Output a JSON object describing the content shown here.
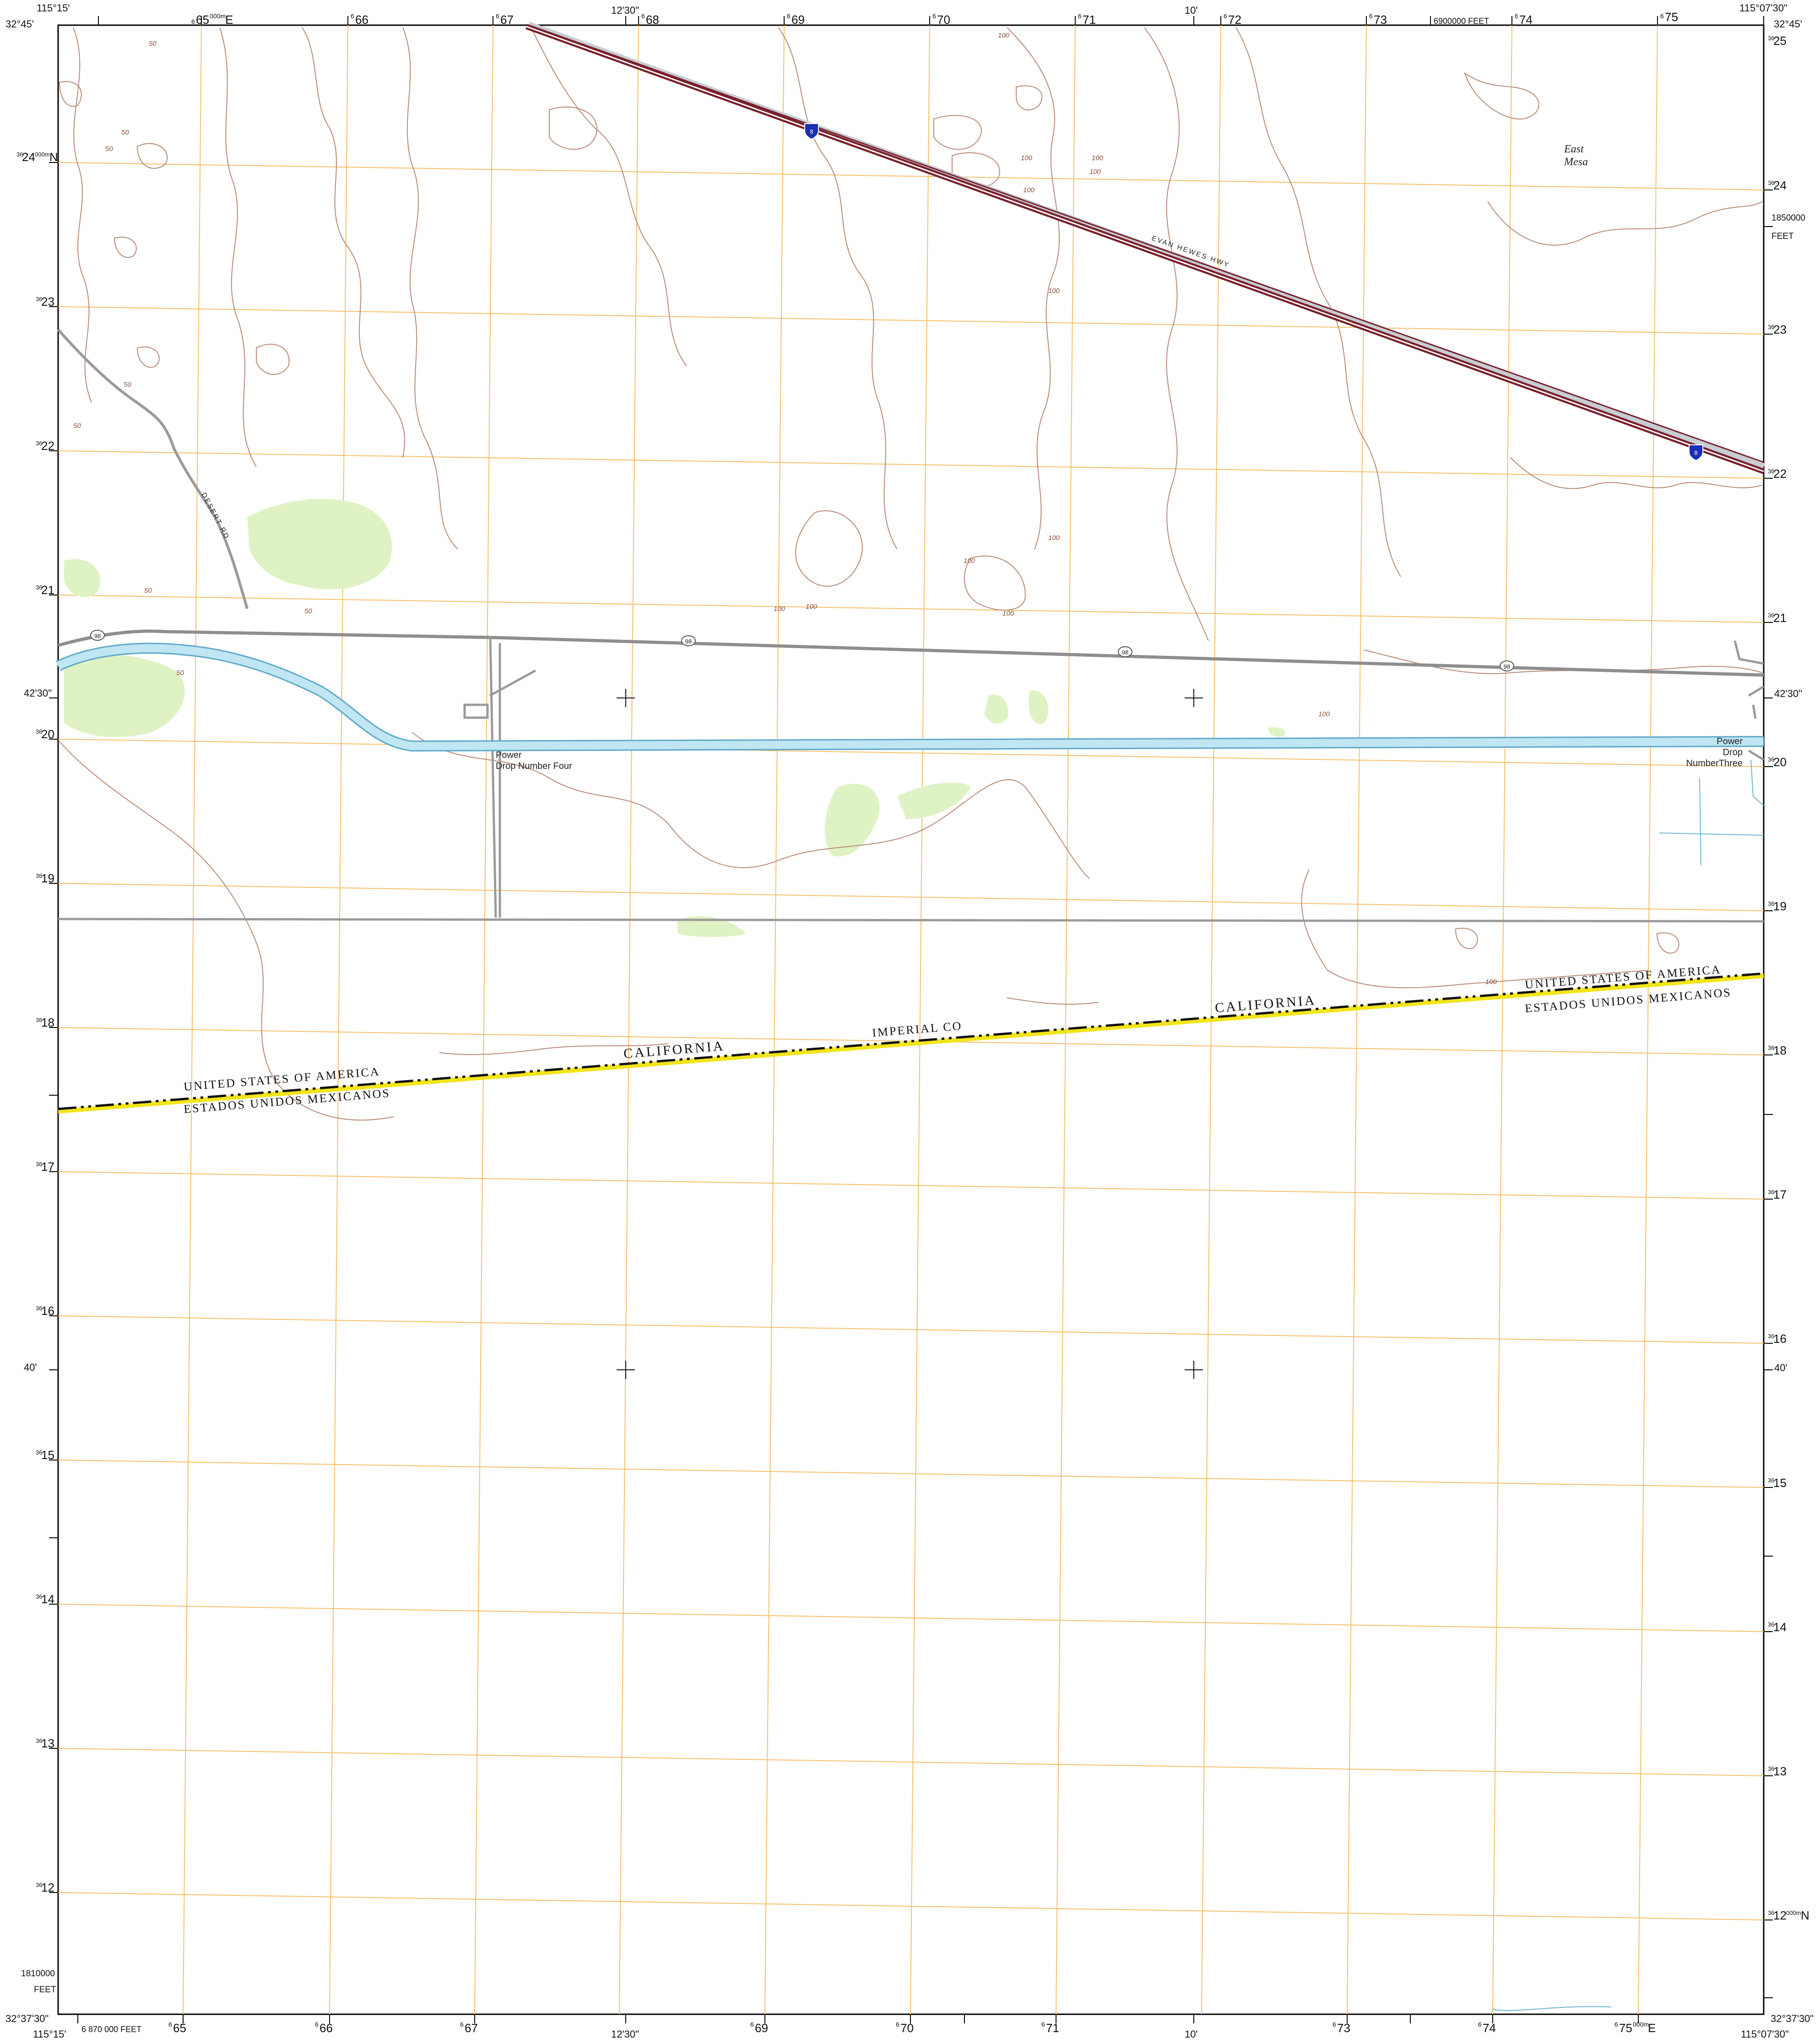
{
  "corners": {
    "top_left_lon": "115°15'",
    "top_left_lat": "32°45'",
    "top_right_lon": "115°07'30\"",
    "top_right_lat": "32°45'",
    "bottom_left_lon": "115°15'",
    "bottom_left_lat": "32°37'30\"",
    "bottom_right_lon": "115°07'30\"",
    "bottom_right_lat": "32°37'30\""
  },
  "top_ticks": {
    "e65": "65",
    "e65_prefix": "6",
    "e65_units": "000m",
    "e65_suffix": "E",
    "e66": "66",
    "e67": "67",
    "lon_mid": "12'30\"",
    "e68": "68",
    "e69": "69",
    "e70": "70",
    "e71": "71",
    "lon_10": "10'",
    "e72": "72",
    "e73": "73",
    "feet": "6900000 FEET",
    "e74": "74",
    "e75": "75",
    "superscript": "6"
  },
  "bottom_ticks": {
    "feet": "6 870 000 FEET",
    "e65": "65",
    "e66": "66",
    "e67": "67",
    "lon_mid": "12'30\"",
    "e69": "69",
    "e70": "70",
    "e71": "71",
    "lon_10": "10'",
    "e73": "73",
    "e74": "74",
    "e75": "75",
    "e75_units": "000m",
    "e75_suffix": "E"
  },
  "left_ticks": {
    "n24": "24",
    "n24_units": "000m",
    "n24_suffix": "N",
    "n23": "23",
    "n22": "22",
    "n21": "21",
    "lat_4230": "42'30\"",
    "n20": "20",
    "n19": "19",
    "n18": "18",
    "n17": "17",
    "n16": "16",
    "lat_40": "40'",
    "n15": "15",
    "n14": "14",
    "n13": "13",
    "n12": "12",
    "feet_val": "1810000",
    "feet_unit": "FEET",
    "prefix": "36"
  },
  "right_ticks": {
    "n25": "25",
    "n24": "24",
    "feet_val": "1850000",
    "feet_unit": "FEET",
    "n23": "23",
    "n22": "22",
    "n21": "21",
    "lat_4230": "42'30\"",
    "n20": "20",
    "n19": "19",
    "n18": "18",
    "n17": "17",
    "n16": "16",
    "lat_40": "40'",
    "n15": "15",
    "n14": "14",
    "n13": "13",
    "n12": "12",
    "n12_units": "000m",
    "n12_suffix": "N",
    "prefix": "36"
  },
  "places": {
    "east_mesa_1": "East",
    "east_mesa_2": "Mesa",
    "evan_hewes": "EVAN HEWES HWY",
    "desert_rd": "DESERT RD",
    "power_drop_four_1": "Power",
    "power_drop_four_2": "Drop Number Four",
    "power_drop_three_1": "Power",
    "power_drop_three_2": "Drop",
    "power_drop_three_3": "NumberThree",
    "route_98": "98",
    "interstate_8": "8"
  },
  "boundary": {
    "usa": "UNITED  STATES  OF  AMERICA",
    "mex": "ESTADOS  UNIDOS  MEXICANOS",
    "california": "CALIFORNIA",
    "imperial": "IMPERIAL CO"
  },
  "contours": {
    "c50": "50",
    "c100": "100"
  },
  "colors": {
    "grid": "#f6c06a",
    "contour": "#b88a76",
    "interstate": "#7a1f2b",
    "road": "#9a9a9a",
    "canal": "#bfe6f2",
    "vegetation": "#dff2c4",
    "shield": "#1a2fb5"
  }
}
